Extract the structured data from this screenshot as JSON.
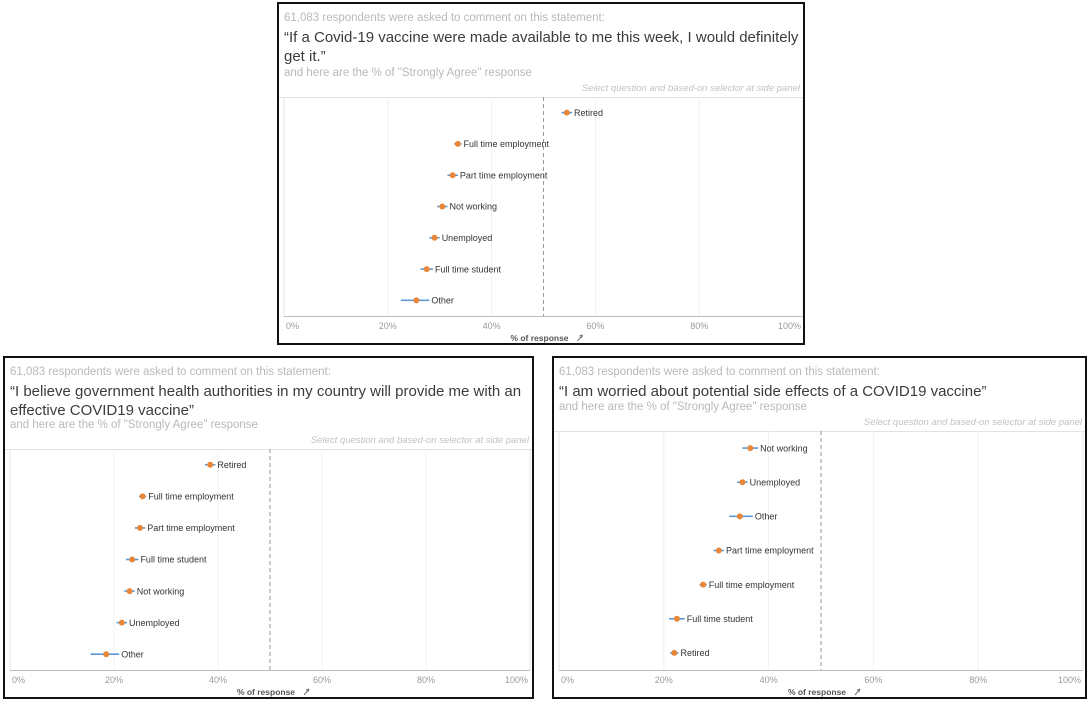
{
  "common": {
    "intro": "61,083 respondents were asked to comment on this statement:",
    "subtitle": "and here are the % of \"Strongly Agree\" response",
    "selector_note": "Select question and based-on selector at side panel",
    "xlabel": "% of response",
    "sort_icon": "sort-descending-icon"
  },
  "colors": {
    "point": "#e8873a",
    "interval": "#5b9bd5",
    "reference_line": "#9a9a9a",
    "border": "#111111"
  },
  "chart_data": [
    {
      "type": "scatter",
      "statement": "“If a Covid-19 vaccine were made available to me this week, I would definitely get it.”",
      "xlabel": "% of response",
      "xlim": [
        0,
        100
      ],
      "xticks": [
        "0%",
        "20%",
        "40%",
        "60%",
        "80%",
        "100%"
      ],
      "reference_line": 50,
      "categories": [
        "Retired",
        "Full time employment",
        "Part time employment",
        "Not working",
        "Unemployed",
        "Full time student",
        "Other"
      ],
      "values": [
        54.5,
        33.5,
        32.5,
        30.5,
        29,
        27.5,
        25.5
      ],
      "ci_low": [
        53.5,
        32.8,
        31.5,
        29.5,
        28,
        26.3,
        22.5
      ],
      "ci_high": [
        55.5,
        34.2,
        33.5,
        31.5,
        30,
        28.7,
        28.0
      ]
    },
    {
      "type": "scatter",
      "statement": "“I believe government health authorities in my country will provide me with an effective COVID19 vaccine”",
      "xlabel": "% of response",
      "xlim": [
        0,
        100
      ],
      "xticks": [
        "0%",
        "20%",
        "40%",
        "60%",
        "80%",
        "100%"
      ],
      "reference_line": 50,
      "categories": [
        "Retired",
        "Full time employment",
        "Part time employment",
        "Full time student",
        "Not working",
        "Unemployed",
        "Other"
      ],
      "values": [
        38.5,
        25.5,
        25,
        23.5,
        23,
        21.5,
        18.5
      ],
      "ci_low": [
        37.5,
        24.8,
        24,
        22.3,
        22,
        20.5,
        15.5
      ],
      "ci_high": [
        39.5,
        26.2,
        26,
        24.7,
        24,
        22.5,
        21.0
      ]
    },
    {
      "type": "scatter",
      "statement": "“I am worried about potential side effects of a COVID19 vaccine”",
      "xlabel": "% of response",
      "xlim": [
        0,
        100
      ],
      "xticks": [
        "0%",
        "20%",
        "40%",
        "60%",
        "80%",
        "100%"
      ],
      "reference_line": 50,
      "categories": [
        "Not working",
        "Unemployed",
        "Other",
        "Part time employment",
        "Full time employment",
        "Full time student",
        "Retired"
      ],
      "values": [
        36.5,
        35,
        34.5,
        30.5,
        27.5,
        22.5,
        22
      ],
      "ci_low": [
        35,
        34,
        32.5,
        29.5,
        26.8,
        21,
        21.2
      ],
      "ci_high": [
        38,
        36,
        37.0,
        31.5,
        28.2,
        24,
        22.8
      ]
    }
  ]
}
